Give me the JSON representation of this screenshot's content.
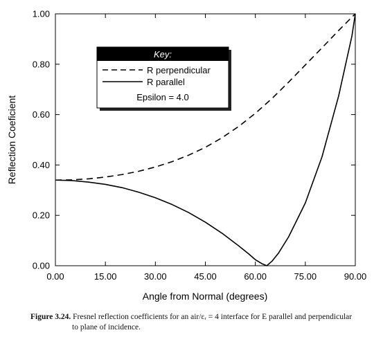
{
  "chart_data": {
    "type": "line",
    "xlabel": "Angle from Normal (degrees)",
    "ylabel": "Reflection Coeficient",
    "xlim": [
      0,
      90
    ],
    "ylim": [
      0,
      1
    ],
    "xticks": [
      "0.00",
      "15.00",
      "30.00",
      "45.00",
      "60.00",
      "75.00",
      "90.00"
    ],
    "yticks": [
      "0.00",
      "0.20",
      "0.40",
      "0.60",
      "0.80",
      "1.00"
    ],
    "grid": false,
    "legend": {
      "title": "Key:",
      "placement": "upper-left",
      "note": "Epsilon = 4.0"
    },
    "series": [
      {
        "name": "R perpendicular",
        "style": "dashed",
        "x": [
          0,
          5,
          10,
          15,
          20,
          25,
          30,
          35,
          40,
          45,
          50,
          55,
          60,
          65,
          70,
          75,
          80,
          85,
          89,
          90
        ],
        "y": [
          0.34,
          0.341,
          0.345,
          0.352,
          0.362,
          0.375,
          0.392,
          0.413,
          0.439,
          0.47,
          0.508,
          0.553,
          0.605,
          0.664,
          0.729,
          0.797,
          0.865,
          0.934,
          0.987,
          1.0
        ]
      },
      {
        "name": "R parallel",
        "style": "solid",
        "x": [
          0,
          5,
          10,
          15,
          20,
          25,
          30,
          35,
          40,
          45,
          50,
          55,
          58,
          60,
          62,
          63.43,
          65,
          67,
          70,
          75,
          80,
          85,
          89,
          90
        ],
        "y": [
          0.34,
          0.338,
          0.332,
          0.323,
          0.31,
          0.292,
          0.27,
          0.243,
          0.211,
          0.173,
          0.129,
          0.079,
          0.047,
          0.024,
          0.008,
          0.0,
          0.018,
          0.051,
          0.115,
          0.249,
          0.432,
          0.674,
          0.913,
          1.0
        ]
      }
    ]
  },
  "caption": {
    "label": "Figure 3.24.",
    "line1": "Fresnel reflection coefficients for an air/εᵣ = 4 interface for E parallel and perpendicular",
    "line2": "to plane of incidence."
  }
}
